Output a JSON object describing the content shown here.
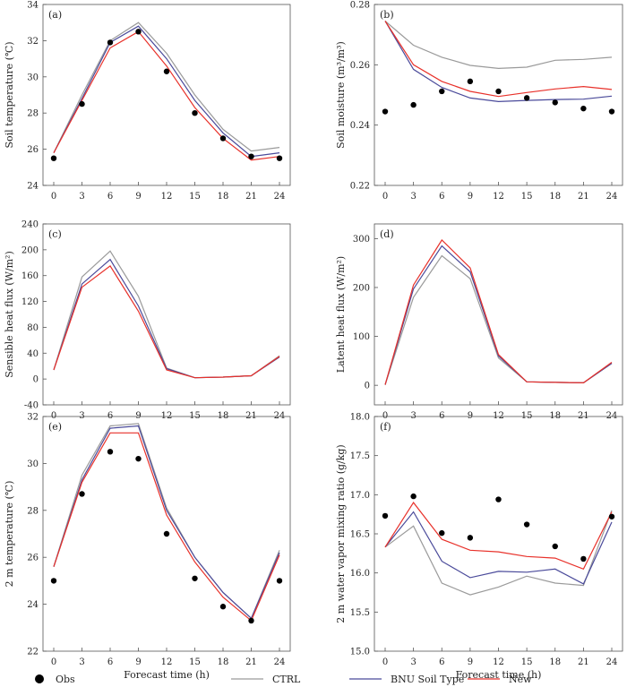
{
  "colors": {
    "CTRL": "#9a9a9a",
    "BNU": "#4a4a9a",
    "New": "#e8312a",
    "Obs": "#000000",
    "axis": "#555555"
  },
  "legend": {
    "obs": "Obs",
    "ctrl": "CTRL",
    "bnu": "BNU Soil Type",
    "new": "New"
  },
  "chart_data": [
    {
      "type": "line",
      "panel": "(a)",
      "ylabel": "Soil temperature (℃)",
      "xlabel": "",
      "ylim": [
        24,
        34
      ],
      "yticks": [
        24,
        26,
        28,
        30,
        32,
        34
      ],
      "yticklabels": [
        "24",
        "26",
        "28",
        "30",
        "32",
        "34"
      ],
      "x": [
        0,
        3,
        6,
        9,
        12,
        15,
        18,
        21,
        24
      ],
      "xticklabels": [
        "0",
        "3",
        "6",
        "9",
        "12",
        "15",
        "18",
        "21",
        "24"
      ],
      "series": [
        {
          "name": "CTRL",
          "values": [
            25.8,
            29.0,
            32.0,
            33.0,
            31.3,
            29.0,
            27.1,
            25.9,
            26.1
          ]
        },
        {
          "name": "BNU Soil Type",
          "values": [
            25.8,
            28.8,
            31.9,
            32.8,
            31.0,
            28.7,
            26.9,
            25.6,
            25.8
          ]
        },
        {
          "name": "New",
          "values": [
            25.8,
            28.7,
            31.6,
            32.5,
            30.6,
            28.3,
            26.6,
            25.4,
            25.6
          ]
        }
      ],
      "obs": [
        25.5,
        28.5,
        31.9,
        32.5,
        30.3,
        28.0,
        26.6,
        25.6,
        25.5
      ]
    },
    {
      "type": "line",
      "panel": "(b)",
      "ylabel": "Soil moisture (m³/m³)",
      "xlabel": "",
      "ylim": [
        0.22,
        0.28
      ],
      "yticks": [
        0.22,
        0.24,
        0.26,
        0.28
      ],
      "yticklabels": [
        "0.22",
        "0.24",
        "0.26",
        "0.28"
      ],
      "x": [
        0,
        3,
        6,
        9,
        12,
        15,
        18,
        21,
        24
      ],
      "xticklabels": [
        "0",
        "3",
        "6",
        "9",
        "12",
        "15",
        "18",
        "21",
        "24"
      ],
      "series": [
        {
          "name": "CTRL",
          "values": [
            0.2745,
            0.2665,
            0.2625,
            0.2598,
            0.2588,
            0.2592,
            0.2615,
            0.2618,
            0.2625
          ]
        },
        {
          "name": "BNU Soil Type",
          "values": [
            0.2745,
            0.2585,
            0.2525,
            0.249,
            0.2478,
            0.2482,
            0.2485,
            0.2486,
            0.2496
          ]
        },
        {
          "name": "New",
          "values": [
            0.2745,
            0.26,
            0.2545,
            0.2512,
            0.2495,
            0.2508,
            0.252,
            0.2528,
            0.2518
          ]
        }
      ],
      "obs": [
        0.2445,
        0.2467,
        0.2512,
        0.2545,
        0.2512,
        0.249,
        0.2475,
        0.2455,
        0.2445
      ]
    },
    {
      "type": "line",
      "panel": "(c)",
      "ylabel": "Sensible heat flux (W/m²)",
      "xlabel": "",
      "ylim": [
        -40,
        240
      ],
      "yticks": [
        -40,
        0,
        40,
        80,
        120,
        160,
        200,
        240
      ],
      "yticklabels": [
        "-40",
        "0",
        "40",
        "80",
        "120",
        "160",
        "200",
        "240"
      ],
      "x": [
        0,
        3,
        6,
        9,
        12,
        15,
        18,
        21,
        24
      ],
      "xticklabels": [
        "0",
        "3",
        "6",
        "9",
        "12",
        "15",
        "18",
        "21",
        "24"
      ],
      "series": [
        {
          "name": "CTRL",
          "values": [
            14,
            158,
            198,
            128,
            17,
            2,
            3,
            5,
            36
          ]
        },
        {
          "name": "BNU Soil Type",
          "values": [
            14,
            147,
            185,
            113,
            16,
            2,
            3,
            5,
            34
          ]
        },
        {
          "name": "New",
          "values": [
            14,
            142,
            175,
            105,
            14,
            2,
            3,
            5,
            35
          ]
        }
      ],
      "obs": []
    },
    {
      "type": "line",
      "panel": "(d)",
      "ylabel": "Latent heat flux (W/m²)",
      "xlabel": "",
      "ylim": [
        -40,
        330
      ],
      "yticks": [
        0,
        100,
        200,
        300
      ],
      "yticklabels": [
        "0",
        "100",
        "200",
        "300"
      ],
      "x": [
        0,
        3,
        6,
        9,
        12,
        15,
        18,
        21,
        24
      ],
      "xticklabels": [
        "0",
        "3",
        "6",
        "9",
        "12",
        "15",
        "18",
        "21",
        "24"
      ],
      "series": [
        {
          "name": "CTRL",
          "values": [
            1,
            180,
            265,
            218,
            56,
            7,
            6,
            5,
            45
          ]
        },
        {
          "name": "BNU Soil Type",
          "values": [
            1,
            197,
            285,
            232,
            60,
            7,
            6,
            5,
            45
          ]
        },
        {
          "name": "New",
          "values": [
            1,
            205,
            297,
            240,
            63,
            7,
            6,
            5,
            47
          ]
        }
      ],
      "obs": []
    },
    {
      "type": "line",
      "panel": "(e)",
      "ylabel": "2 m temperature (℃)",
      "xlabel": "Forecast time (h)",
      "ylim": [
        22,
        32
      ],
      "yticks": [
        22,
        24,
        26,
        28,
        30,
        32
      ],
      "yticklabels": [
        "22",
        "24",
        "26",
        "28",
        "30",
        "32"
      ],
      "x": [
        0,
        3,
        6,
        9,
        12,
        15,
        18,
        21,
        24
      ],
      "xticklabels": [
        "0",
        "3",
        "6",
        "9",
        "12",
        "15",
        "18",
        "21",
        "24"
      ],
      "series": [
        {
          "name": "CTRL",
          "values": [
            25.6,
            29.5,
            31.6,
            31.7,
            28.1,
            26.0,
            24.5,
            23.4,
            26.3
          ]
        },
        {
          "name": "BNU Soil Type",
          "values": [
            25.6,
            29.3,
            31.5,
            31.6,
            28.0,
            26.0,
            24.5,
            23.4,
            26.2
          ]
        },
        {
          "name": "New",
          "values": [
            25.6,
            29.2,
            31.3,
            31.3,
            27.8,
            25.8,
            24.3,
            23.3,
            26.1
          ]
        }
      ],
      "obs": [
        25.0,
        28.7,
        30.5,
        30.2,
        27.0,
        25.1,
        23.9,
        23.3,
        25.0
      ]
    },
    {
      "type": "line",
      "panel": "(f)",
      "ylabel": "2 m water vapor mixing ratio (g/kg)",
      "xlabel": "Forecast time (h)",
      "ylim": [
        15.0,
        18.0
      ],
      "yticks": [
        15.0,
        15.5,
        16.0,
        16.5,
        17.0,
        17.5,
        18.0
      ],
      "yticklabels": [
        "15.0",
        "15.5",
        "16.0",
        "16.5",
        "17.0",
        "17.5",
        "18.0"
      ],
      "x": [
        0,
        3,
        6,
        9,
        12,
        15,
        18,
        21,
        24
      ],
      "xticklabels": [
        "0",
        "3",
        "6",
        "9",
        "12",
        "15",
        "18",
        "21",
        "24"
      ],
      "series": [
        {
          "name": "CTRL",
          "values": [
            16.33,
            16.6,
            15.87,
            15.72,
            15.82,
            15.96,
            15.87,
            15.84,
            16.8
          ]
        },
        {
          "name": "BNU Soil Type",
          "values": [
            16.33,
            16.78,
            16.15,
            15.94,
            16.02,
            16.01,
            16.05,
            15.86,
            16.65
          ]
        },
        {
          "name": "New",
          "values": [
            16.33,
            16.9,
            16.43,
            16.29,
            16.27,
            16.21,
            16.19,
            16.05,
            16.78
          ]
        }
      ],
      "obs": [
        16.73,
        16.98,
        16.51,
        16.45,
        16.94,
        16.62,
        16.34,
        16.18,
        16.72
      ]
    }
  ]
}
